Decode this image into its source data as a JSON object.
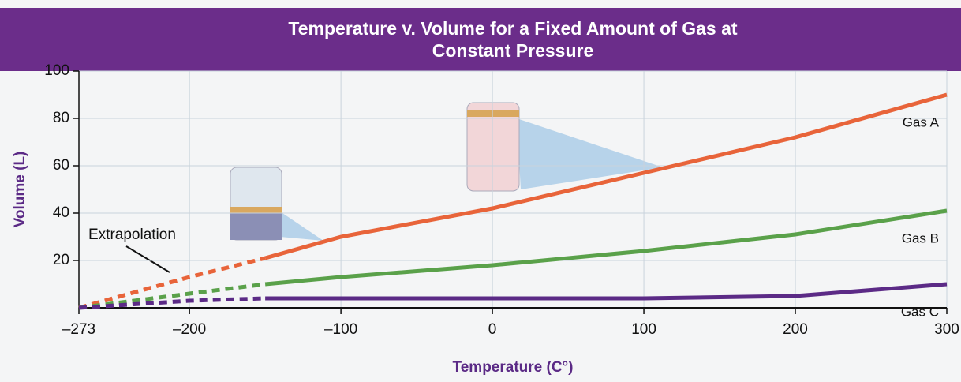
{
  "chart_data": {
    "type": "line",
    "title": "Temperature v. Volume for a Fixed Amount of Gas at Constant Pressure",
    "x_label": "Temperature (C°)",
    "y_label": "Volume (L)",
    "annotation": "Extrapolation",
    "x": [
      -273,
      -200,
      -150,
      -100,
      0,
      100,
      200,
      300
    ],
    "line_style": [
      "dashed",
      "dashed",
      "solid",
      "solid",
      "solid",
      "solid",
      "solid"
    ],
    "series": [
      {
        "name": "Gas A",
        "color": "#e8643a",
        "values": [
          0,
          13,
          21,
          30,
          42,
          57,
          72,
          90
        ]
      },
      {
        "name": "Gas B",
        "color": "#5aa14a",
        "values": [
          0,
          6,
          10,
          13,
          18,
          24,
          31,
          41
        ]
      },
      {
        "name": "Gas C",
        "color": "#5b2a86",
        "values": [
          0,
          3,
          4,
          4,
          4,
          4,
          5,
          10
        ]
      }
    ],
    "xlim": [
      -273,
      300
    ],
    "ylim": [
      0,
      100
    ],
    "xticks": [
      {
        "value": -273,
        "label": "–273"
      },
      {
        "value": -200,
        "label": "–200"
      },
      {
        "value": -100,
        "label": "–100"
      },
      0,
      100,
      200,
      300
    ],
    "yticks": [
      20,
      40,
      60,
      80,
      100
    ],
    "grid": true
  }
}
